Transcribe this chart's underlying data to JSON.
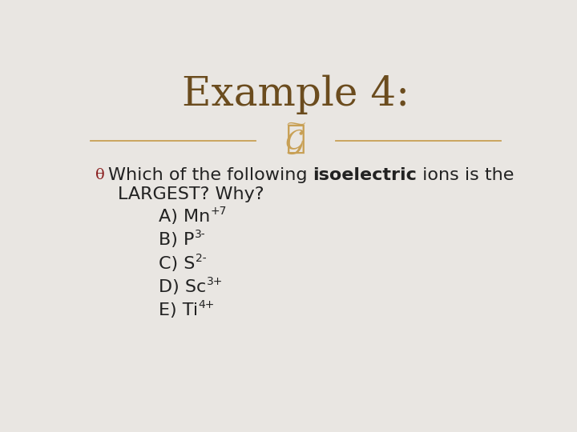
{
  "title": "Example 4:",
  "title_color": "#6b4c1e",
  "title_fontsize": 36,
  "bg_color": "#e9e6e2",
  "divider_color": "#c8a055",
  "question_normal1": "Which of the following ",
  "question_bold": "isoelectric",
  "question_normal2": " ions is the",
  "question_line2": "LARGEST? Why?",
  "question_color": "#222222",
  "question_fontsize": 16,
  "bullet_color": "#8b2020",
  "options_color": "#222222",
  "options_fontsize": 16,
  "options": [
    {
      "prefix": "A) Mn",
      "super": "+7"
    },
    {
      "prefix": "B) P",
      "super": "3-"
    },
    {
      "prefix": "C) S",
      "super": "2-"
    },
    {
      "prefix": "D) Sc",
      "super": "3+"
    },
    {
      "prefix": "E) Ti",
      "super": "4+"
    }
  ]
}
